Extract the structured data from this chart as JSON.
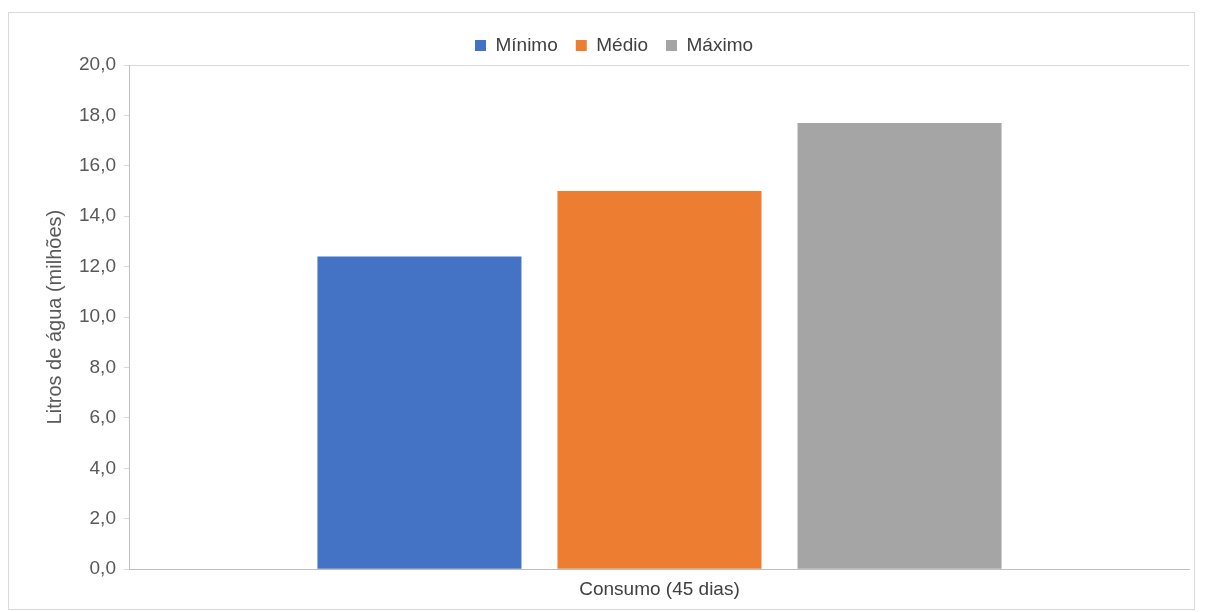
{
  "chart_data": {
    "type": "bar",
    "ylabel": "Litros de água (milhões)",
    "categories": [
      "Consumo (45 dias)"
    ],
    "series": [
      {
        "name": "Mínimo",
        "color": "#4472c4",
        "values": [
          12.4
        ]
      },
      {
        "name": "Médio",
        "color": "#ed7d31",
        "values": [
          15.0
        ]
      },
      {
        "name": "Máximo",
        "color": "#a5a5a5",
        "values": [
          17.7
        ]
      }
    ],
    "ylim": [
      0,
      20
    ],
    "yticks": [
      {
        "value": 0,
        "label": "0,0"
      },
      {
        "value": 2,
        "label": "2,0"
      },
      {
        "value": 4,
        "label": "4,0"
      },
      {
        "value": 6,
        "label": "6,0"
      },
      {
        "value": 8,
        "label": "8,0"
      },
      {
        "value": 10,
        "label": "10,0"
      },
      {
        "value": 12,
        "label": "12,0"
      },
      {
        "value": 14,
        "label": "14,0"
      },
      {
        "value": 16,
        "label": "16,0"
      },
      {
        "value": 18,
        "label": "18,0"
      },
      {
        "value": 20,
        "label": "20,0"
      }
    ],
    "grid": false,
    "legend": "top"
  }
}
